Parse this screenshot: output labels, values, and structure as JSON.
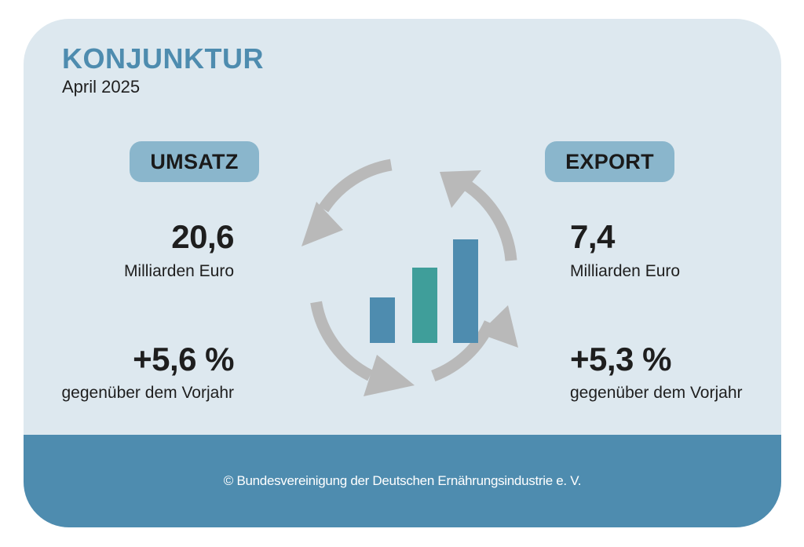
{
  "header": {
    "title": "KONJUNKTUR",
    "date": "April 2025"
  },
  "left": {
    "badge": "UMSATZ",
    "value": "20,6",
    "unit": "Milliarden Euro",
    "change": "+5,6 %",
    "change_label": "gegenüber dem Vorjahr"
  },
  "right": {
    "badge": "EXPORT",
    "value": "7,4",
    "unit": "Milliarden Euro",
    "change": "+5,3 %",
    "change_label": "gegenüber dem Vorjahr"
  },
  "graphic": {
    "icon": "cycle-bar-chart-icon",
    "bar_colors": [
      "#4e8caf",
      "#3f9e9a",
      "#4e8caf"
    ],
    "arrow_color": "#b9b9b9"
  },
  "footer": {
    "copyright": "© Bundesvereinigung der Deutschen Ernährungsindustrie e. V."
  },
  "colors": {
    "accent": "#4e8caf",
    "panel": "#dde8ef",
    "badge": "#8ab6cc"
  }
}
